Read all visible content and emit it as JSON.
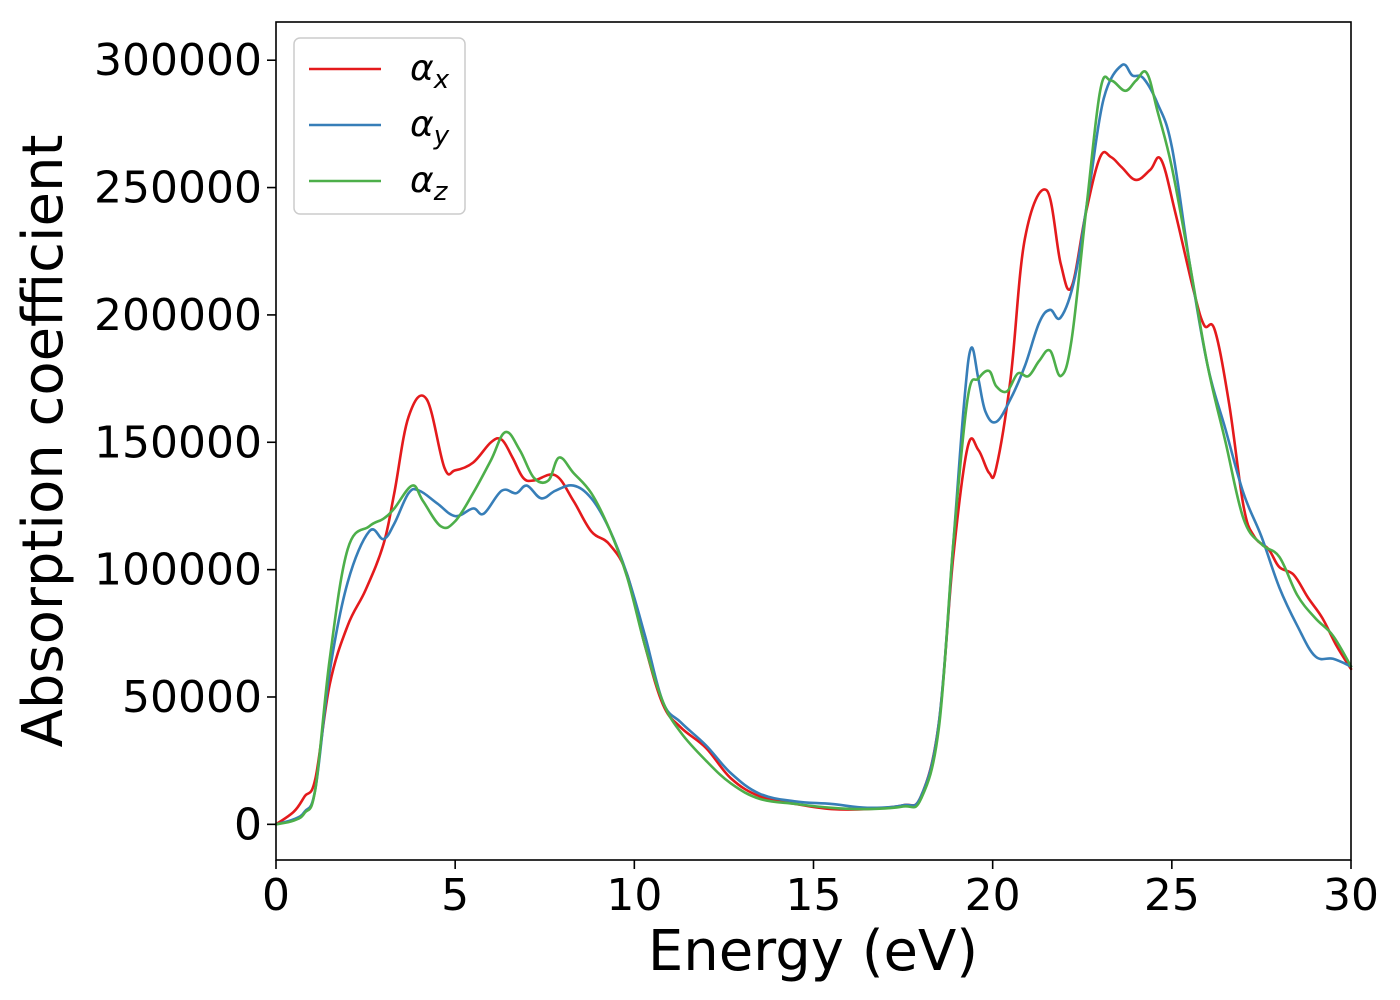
{
  "chart_data": {
    "type": "line",
    "title": "",
    "xlabel": "Energy (eV)",
    "ylabel": "Absorption coefficient",
    "xlim": [
      0,
      30
    ],
    "ylim": [
      -14000,
      315000
    ],
    "xticks": [
      0,
      5,
      10,
      15,
      20,
      25,
      30
    ],
    "yticks": [
      0,
      50000,
      100000,
      150000,
      200000,
      250000,
      300000
    ],
    "xtick_labels": [
      "0",
      "5",
      "10",
      "15",
      "20",
      "25",
      "30"
    ],
    "ytick_labels": [
      "0",
      "50000",
      "100000",
      "150000",
      "200000",
      "250000",
      "300000"
    ],
    "grid": false,
    "legend_position": "top-left",
    "series": [
      {
        "name": "α",
        "subscript": "x",
        "color": "#e41a1c",
        "x": [
          0,
          0.5,
          0.8,
          1.1,
          1.5,
          2.0,
          2.5,
          3.0,
          3.3,
          3.7,
          4.2,
          4.7,
          5.0,
          5.5,
          6.0,
          6.3,
          6.6,
          6.9,
          7.2,
          7.8,
          8.3,
          8.8,
          9.3,
          9.8,
          10.3,
          10.8,
          11.3,
          12.0,
          12.7,
          13.5,
          14.5,
          15.5,
          16.5,
          17.5,
          18.0,
          18.5,
          18.9,
          19.3,
          19.6,
          19.9,
          20.1,
          20.5,
          20.9,
          21.5,
          21.9,
          22.2,
          22.6,
          23.0,
          23.3,
          23.6,
          24.0,
          24.4,
          24.7,
          25.1,
          25.6,
          25.9,
          26.2,
          26.6,
          27.0,
          27.3,
          27.7,
          28.0,
          28.4,
          28.8,
          29.2,
          29.6,
          30.0
        ],
        "y": [
          0,
          5000,
          11000,
          18000,
          55000,
          78000,
          92000,
          110000,
          130000,
          160000,
          167000,
          140000,
          139000,
          142000,
          150000,
          151000,
          144000,
          136000,
          135000,
          137000,
          127000,
          115000,
          110000,
          98000,
          70000,
          47000,
          38000,
          30000,
          18000,
          11000,
          8000,
          6000,
          6000,
          7500,
          11000,
          40000,
          105000,
          148000,
          147000,
          138000,
          140000,
          175000,
          230000,
          249000,
          220000,
          211000,
          240000,
          262000,
          262000,
          258000,
          253000,
          257000,
          261000,
          240000,
          210000,
          196000,
          194000,
          165000,
          125000,
          113000,
          108000,
          101000,
          98000,
          89000,
          81000,
          70000,
          61000
        ]
      },
      {
        "name": "α",
        "subscript": "y",
        "color": "#377eb8",
        "x": [
          0,
          0.5,
          0.8,
          1.1,
          1.5,
          2.0,
          2.6,
          3.0,
          3.3,
          3.7,
          4.0,
          4.5,
          5.0,
          5.5,
          5.8,
          6.3,
          6.7,
          7.0,
          7.4,
          7.8,
          8.3,
          8.8,
          9.3,
          9.8,
          10.3,
          10.8,
          11.3,
          12.0,
          12.7,
          13.5,
          14.5,
          15.5,
          16.5,
          17.5,
          18.0,
          18.5,
          18.9,
          19.2,
          19.4,
          19.6,
          19.8,
          20.1,
          20.5,
          20.9,
          21.3,
          21.6,
          21.9,
          22.3,
          22.7,
          23.1,
          23.6,
          23.9,
          24.2,
          24.6,
          25.0,
          25.5,
          26.0,
          26.5,
          27.0,
          27.5,
          28.0,
          28.5,
          29.0,
          29.5,
          30.0
        ],
        "y": [
          0,
          2000,
          5000,
          14000,
          60000,
          95000,
          115000,
          112000,
          118000,
          130000,
          131000,
          126000,
          121000,
          124000,
          122000,
          131000,
          130000,
          133000,
          128000,
          131000,
          133000,
          128000,
          116000,
          98000,
          74000,
          48000,
          40000,
          31000,
          20000,
          12000,
          9000,
          8000,
          6500,
          7500,
          11000,
          40000,
          110000,
          165000,
          187000,
          175000,
          162000,
          158000,
          167000,
          180000,
          197000,
          202000,
          199000,
          215000,
          250000,
          285000,
          298000,
          294000,
          293000,
          283000,
          266000,
          220000,
          180000,
          155000,
          130000,
          113000,
          93000,
          78000,
          66000,
          65000,
          62000
        ]
      },
      {
        "name": "α",
        "subscript": "z",
        "color": "#4daf4a",
        "x": [
          0,
          0.5,
          0.8,
          1.1,
          1.5,
          2.0,
          2.6,
          3.0,
          3.3,
          3.8,
          4.1,
          4.6,
          5.0,
          5.5,
          6.0,
          6.4,
          6.8,
          7.2,
          7.6,
          7.9,
          8.3,
          8.8,
          9.3,
          9.8,
          10.3,
          10.8,
          11.3,
          12.0,
          12.7,
          13.5,
          14.5,
          15.5,
          16.5,
          17.5,
          18.0,
          18.5,
          18.9,
          19.3,
          19.6,
          19.9,
          20.1,
          20.4,
          20.7,
          21.0,
          21.3,
          21.6,
          21.9,
          22.2,
          22.6,
          23.0,
          23.3,
          23.7,
          24.0,
          24.3,
          24.6,
          25.0,
          25.5,
          26.0,
          26.5,
          27.0,
          27.5,
          28.0,
          28.5,
          29.0,
          29.5,
          30.0
        ],
        "y": [
          0,
          1500,
          4500,
          14000,
          65000,
          108000,
          117000,
          120000,
          124000,
          133000,
          127000,
          117000,
          119000,
          130000,
          143000,
          154000,
          147000,
          136000,
          135000,
          144000,
          138000,
          130000,
          116000,
          97000,
          70000,
          48000,
          36000,
          25000,
          16000,
          10000,
          8000,
          6500,
          6000,
          7000,
          10000,
          38000,
          110000,
          167000,
          175000,
          178000,
          172000,
          170000,
          177000,
          176000,
          182000,
          186000,
          176000,
          190000,
          240000,
          288000,
          292000,
          288000,
          292000,
          295000,
          280000,
          258000,
          220000,
          180000,
          150000,
          120000,
          110000,
          105000,
          90000,
          81000,
          74000,
          62000
        ]
      }
    ]
  }
}
